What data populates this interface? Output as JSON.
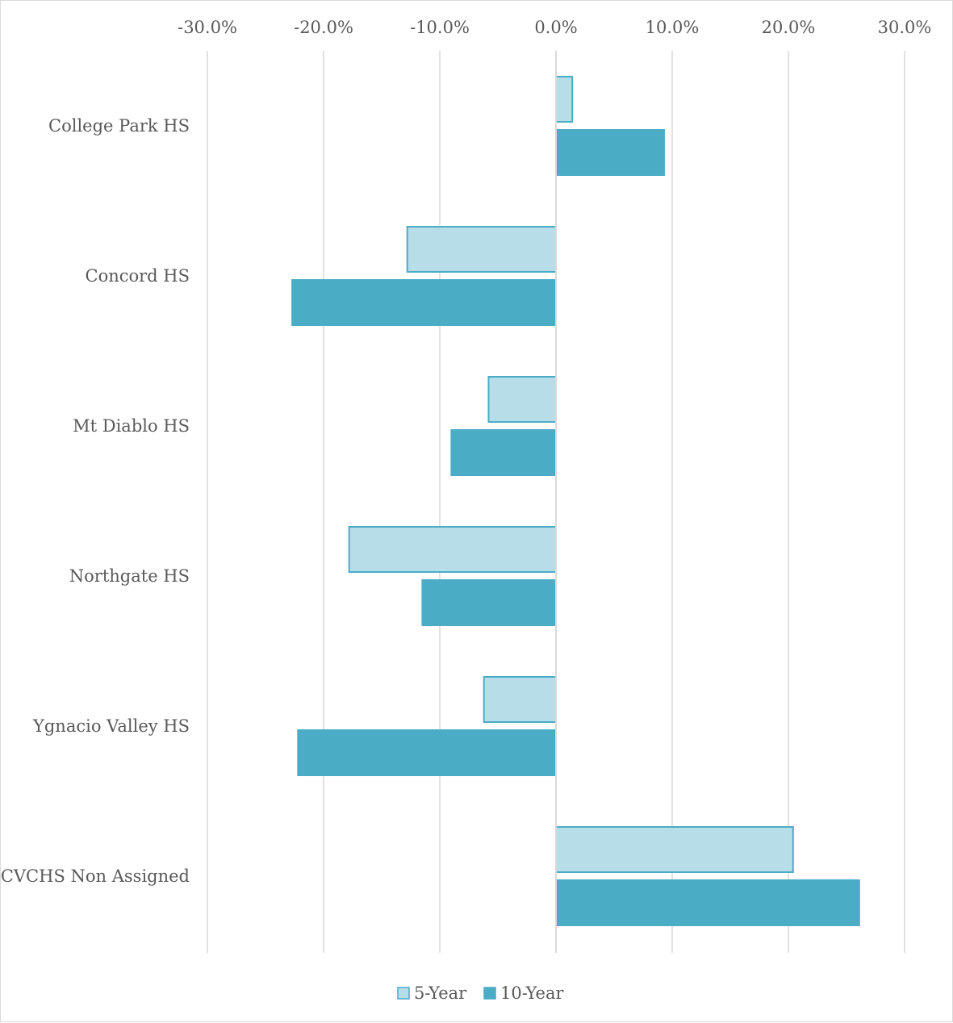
{
  "chart_data": {
    "type": "bar",
    "orientation": "horizontal",
    "categories": [
      "College Park HS",
      "Concord HS",
      "Mt Diablo HS",
      "Northgate HS",
      "Ygnacio Valley HS",
      "CVCHS Non Assigned"
    ],
    "series": [
      {
        "name": "5-Year",
        "color": "#b7dde8",
        "border_color": "#4bacc6",
        "values": [
          1.4,
          -12.8,
          -5.8,
          -17.8,
          -6.2,
          20.4
        ]
      },
      {
        "name": "10-Year",
        "color": "#4bacc6",
        "border_color": "#4bacc6",
        "values": [
          9.3,
          -22.7,
          -9.0,
          -11.5,
          -22.2,
          26.1
        ]
      }
    ],
    "xlim": [
      -30,
      30
    ],
    "x_ticks": [
      "-30.0%",
      "-20.0%",
      "-10.0%",
      "0.0%",
      "10.0%",
      "20.0%",
      "30.0%"
    ],
    "x_tick_values": [
      -30,
      -20,
      -10,
      0,
      10,
      20,
      30
    ],
    "x_axis_position": "top",
    "grid": true,
    "legend": "bottom",
    "title": "",
    "xlabel": "",
    "ylabel": ""
  }
}
